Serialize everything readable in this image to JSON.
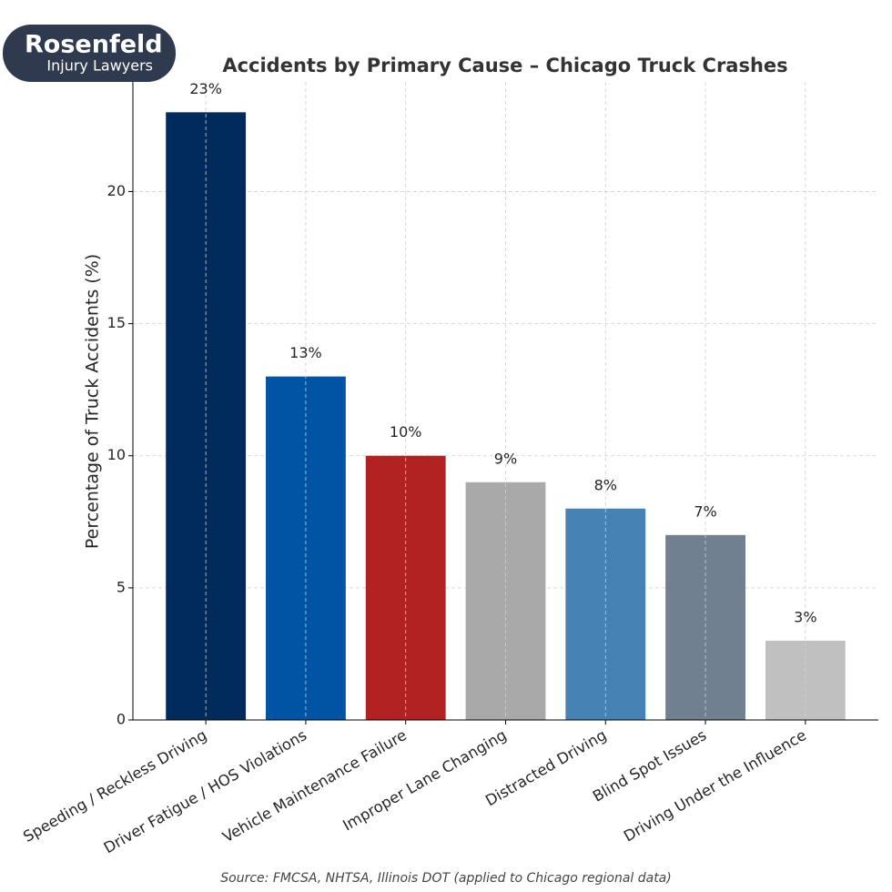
{
  "logo": {
    "name": "Rosenfeld",
    "tagline": "Injury Lawyers"
  },
  "chart_data": {
    "type": "bar",
    "title": "Accidents by Primary Cause – Chicago Truck Crashes",
    "y_label": "Percentage of Truck Accidents (%)",
    "source": "Source: FMCSA, NHTSA, Illinois DOT (applied to Chicago regional data)",
    "categories": [
      "Speeding / Reckless Driving",
      "Driver Fatigue / HOS Violations",
      "Vehicle Maintenance Failure",
      "Improper Lane Changing",
      "Distracted Driving",
      "Blind Spot Issues",
      "Driving Under the Influence"
    ],
    "values": [
      23,
      13,
      10,
      9,
      8,
      7,
      3
    ],
    "value_labels": [
      "23%",
      "13%",
      "10%",
      "9%",
      "8%",
      "7%",
      "3%"
    ],
    "colors": [
      "#002b5c",
      "#0054a3",
      "#b22222",
      "#a9a9a9",
      "#4682b4",
      "#708090",
      "#c0c0c0"
    ],
    "ylim": [
      0,
      24.15
    ],
    "yticks": [
      0,
      5,
      10,
      15,
      20
    ],
    "grid": true
  }
}
